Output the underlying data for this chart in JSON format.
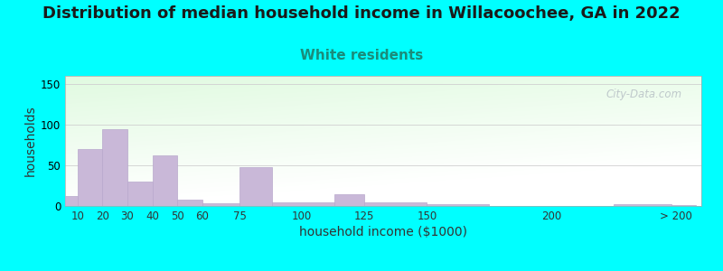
{
  "title": "Distribution of median household income in Willacoochee, GA in 2022",
  "subtitle": "White residents",
  "xlabel": "household income ($1000)",
  "ylabel": "households",
  "background_outer": "#00FFFF",
  "background_inner_top_left": "#d8eed8",
  "background_inner_top_right": "#f0f8f0",
  "background_inner_bottom": "#ffffff",
  "bar_color": "#c9b8d8",
  "bar_edge_color": "#b8a8cc",
  "title_fontsize": 13,
  "subtitle_fontsize": 11,
  "subtitle_color": "#1a8c7a",
  "xlabel_fontsize": 10,
  "ylabel_fontsize": 10,
  "tick_labels": [
    "10",
    "20",
    "30",
    "40",
    "50",
    "60",
    "75",
    "100",
    "125",
    "150",
    "200",
    "> 200"
  ],
  "tick_positions": [
    10,
    20,
    30,
    40,
    50,
    60,
    75,
    100,
    125,
    150,
    200,
    250
  ],
  "bar_left_edges": [
    5,
    10,
    20,
    30,
    40,
    50,
    60,
    75,
    88,
    113,
    125,
    150,
    225,
    248
  ],
  "bar_widths": [
    5,
    10,
    10,
    10,
    10,
    10,
    15,
    13,
    25,
    12,
    25,
    25,
    23,
    10
  ],
  "bar_heights": [
    12,
    70,
    95,
    30,
    62,
    8,
    3,
    48,
    4,
    15,
    5,
    2,
    2,
    1
  ],
  "ylim": [
    0,
    160
  ],
  "yticks": [
    0,
    50,
    100,
    150
  ],
  "xlim": [
    5,
    260
  ],
  "watermark": "City-Data.com"
}
